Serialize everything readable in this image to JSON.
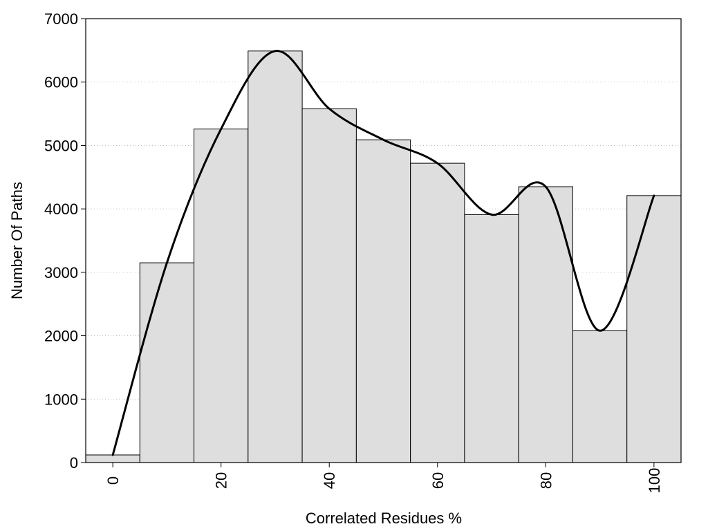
{
  "chart_data": {
    "type": "bar",
    "title": "",
    "xlabel": "Correlated Residues %",
    "ylabel": "Number Of Paths",
    "xlim": [
      -5,
      105
    ],
    "ylim": [
      0,
      7000
    ],
    "x_ticks": [
      0,
      20,
      40,
      60,
      80,
      100
    ],
    "y_ticks": [
      0,
      1000,
      2000,
      3000,
      4000,
      5000,
      6000,
      7000
    ],
    "grid": "horizontal dotted",
    "bar_width": 10,
    "bar_color": "#dedede",
    "bar_edge_color": "#000000",
    "bars": [
      {
        "x": 0,
        "value": 120
      },
      {
        "x": 10,
        "value": 3150
      },
      {
        "x": 20,
        "value": 5260
      },
      {
        "x": 30,
        "value": 6490
      },
      {
        "x": 40,
        "value": 5580
      },
      {
        "x": 50,
        "value": 5090
      },
      {
        "x": 60,
        "value": 4720
      },
      {
        "x": 70,
        "value": 3910
      },
      {
        "x": 80,
        "value": 4350
      },
      {
        "x": 90,
        "value": 2080
      },
      {
        "x": 100,
        "value": 4210
      }
    ],
    "curve": {
      "color": "#000000",
      "points": [
        {
          "x": 0,
          "y": 120
        },
        {
          "x": 10,
          "y": 3150
        },
        {
          "x": 20,
          "y": 5260
        },
        {
          "x": 30,
          "y": 6490
        },
        {
          "x": 40,
          "y": 5580
        },
        {
          "x": 50,
          "y": 5090
        },
        {
          "x": 60,
          "y": 4720
        },
        {
          "x": 70,
          "y": 3910
        },
        {
          "x": 80,
          "y": 4350
        },
        {
          "x": 90,
          "y": 2080
        },
        {
          "x": 100,
          "y": 4210
        }
      ]
    }
  }
}
